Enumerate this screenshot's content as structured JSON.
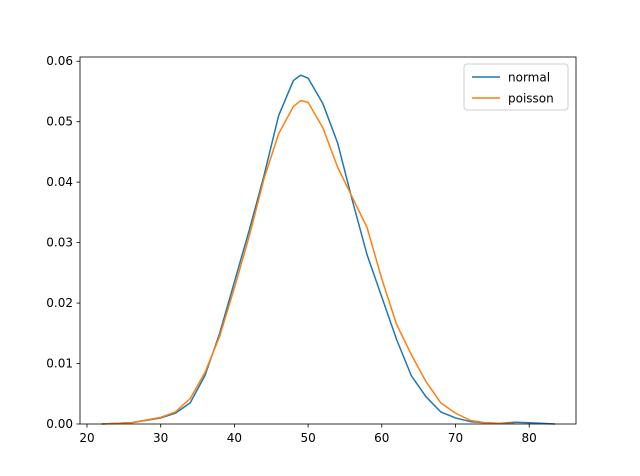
{
  "chart_data": {
    "type": "line",
    "x": [
      22,
      26,
      30,
      32,
      34,
      36,
      38,
      40,
      42,
      44,
      46,
      48,
      49,
      50,
      52,
      54,
      56,
      58,
      60,
      62,
      64,
      66,
      68,
      70,
      72,
      74,
      76,
      78,
      80,
      83.5
    ],
    "series": [
      {
        "name": "normal",
        "color": "#1f77b4",
        "values": [
          0,
          0.0002,
          0.001,
          0.0018,
          0.0035,
          0.008,
          0.015,
          0.0235,
          0.032,
          0.041,
          0.051,
          0.0568,
          0.0577,
          0.0572,
          0.053,
          0.0465,
          0.037,
          0.028,
          0.021,
          0.014,
          0.008,
          0.0045,
          0.002,
          0.001,
          0.0004,
          0.0002,
          0.0001,
          0.0003,
          0.0002,
          0
        ]
      },
      {
        "name": "poisson",
        "color": "#ff7f0e",
        "values": [
          0,
          0.0002,
          0.0011,
          0.002,
          0.0042,
          0.0085,
          0.0145,
          0.0225,
          0.031,
          0.0405,
          0.048,
          0.0525,
          0.0535,
          0.0532,
          0.049,
          0.0425,
          0.0375,
          0.0325,
          0.024,
          0.0165,
          0.0115,
          0.007,
          0.0035,
          0.0018,
          0.0006,
          0.0002,
          0.0001,
          0.0001,
          null,
          null
        ]
      }
    ],
    "xlim": [
      19.05,
      86.35
    ],
    "xticks": [
      20,
      30,
      40,
      50,
      60,
      70,
      80
    ],
    "ylim": [
      0,
      0.0607
    ],
    "yticks": [
      {
        "value": 0,
        "label": "0.00"
      },
      {
        "value": 0.01,
        "label": "0.01"
      },
      {
        "value": 0.02,
        "label": "0.02"
      },
      {
        "value": 0.03,
        "label": "0.03"
      },
      {
        "value": 0.04,
        "label": "0.04"
      },
      {
        "value": 0.05,
        "label": "0.05"
      },
      {
        "value": 0.06,
        "label": "0.06"
      }
    ],
    "legend": "upper right"
  }
}
